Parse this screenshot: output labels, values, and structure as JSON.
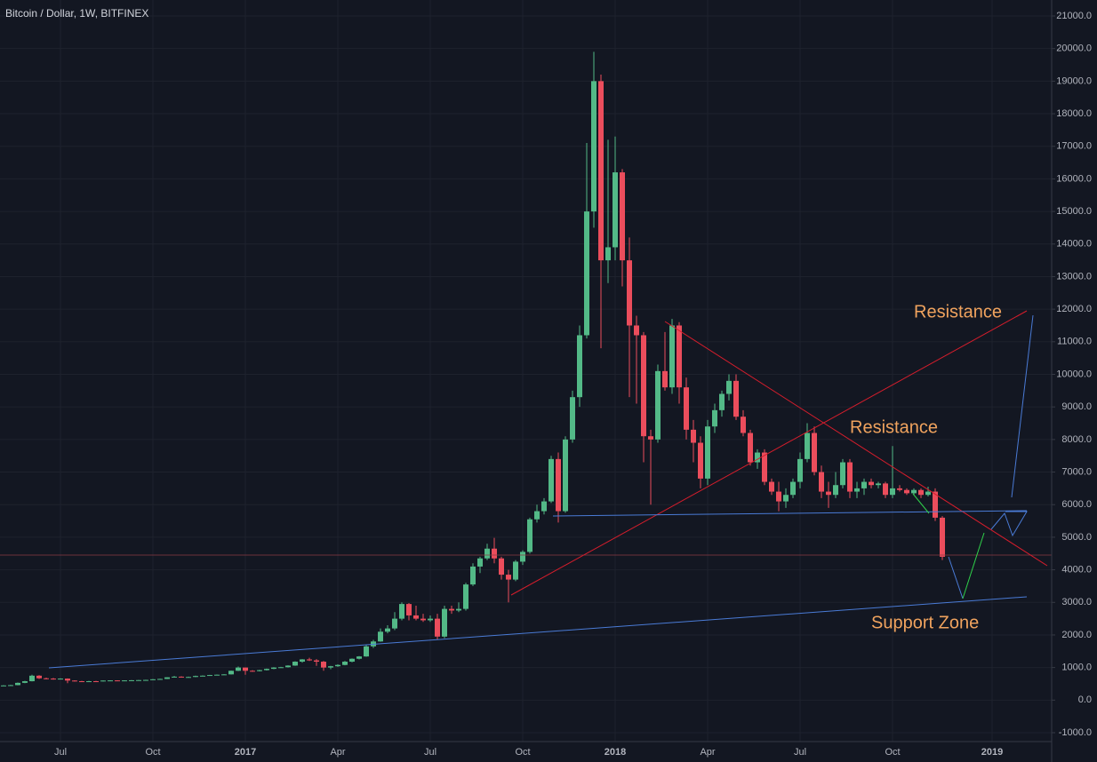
{
  "chart_data": {
    "type": "candlestick",
    "title": "Bitcoin / Dollar, 1W, BITFINEX",
    "categories": [
      null,
      null,
      null,
      null,
      null,
      null,
      null,
      null,
      "Jul",
      null,
      null,
      null,
      null,
      null,
      null,
      null,
      null,
      null,
      null,
      null,
      null,
      "Oct",
      null,
      null,
      null,
      null,
      null,
      null,
      null,
      null,
      null,
      null,
      null,
      null,
      "2017",
      null,
      null,
      null,
      null,
      null,
      null,
      null,
      null,
      null,
      null,
      null,
      null,
      "Apr",
      null,
      null,
      null,
      null,
      null,
      null,
      null,
      null,
      null,
      null,
      null,
      null,
      "Jul",
      null,
      null,
      null,
      null,
      null,
      null,
      null,
      null,
      null,
      null,
      null,
      null,
      "Oct",
      null,
      null,
      null,
      null,
      null,
      null,
      null,
      null,
      null,
      null,
      null,
      null,
      "2018",
      null,
      null,
      null,
      null,
      null,
      null,
      null,
      null,
      null,
      null,
      null,
      null,
      "Apr",
      null,
      null,
      null,
      null,
      null,
      null,
      null,
      null,
      null,
      null,
      null,
      null,
      "Jul",
      null,
      null,
      null,
      null,
      null,
      null,
      null,
      null,
      null,
      null,
      null,
      null,
      "Oct",
      null,
      null,
      null,
      null,
      null,
      null,
      null,
      null,
      null,
      null,
      null,
      null,
      null,
      "2019"
    ],
    "open": [
      440,
      450,
      460,
      530,
      580,
      750,
      670,
      660,
      650,
      660,
      600,
      580,
      575,
      580,
      575,
      600,
      605,
      600,
      605,
      610,
      615,
      620,
      640,
      650,
      700,
      720,
      705,
      710,
      740,
      750,
      770,
      780,
      790,
      900,
      1000,
      900,
      890,
      920,
      960,
      1000,
      1010,
      1060,
      1180,
      1250,
      1220,
      1180,
      1000,
      1040,
      1080,
      1180,
      1270,
      1340,
      1650,
      1800,
      2100,
      2200,
      2500,
      2950,
      2600,
      2500,
      2450,
      2500,
      1950,
      2800,
      2750,
      2800,
      3550,
      4100,
      4350,
      4650,
      4350,
      3850,
      3700,
      4250,
      4550,
      5550,
      5800,
      6100,
      7400,
      5800,
      8000,
      9300,
      11200,
      15000,
      19000,
      13500,
      13900,
      16200,
      13500,
      11500,
      11200,
      8100,
      8000,
      10100,
      9600,
      11500,
      9600,
      8300,
      7900,
      6800,
      8400,
      8900,
      9400,
      9800,
      8700,
      8200,
      7300,
      7600,
      6700,
      6400,
      6100,
      6300,
      6700,
      7400,
      8200,
      7000,
      6400,
      6300,
      6600,
      7300,
      6400,
      6500,
      6700,
      6600,
      6650,
      6300,
      6500,
      6450,
      6350,
      6450,
      6300,
      6400,
      5600,
      null,
      null,
      null,
      null,
      null,
      null,
      null
    ],
    "high": [
      460,
      470,
      540,
      590,
      780,
      765,
      690,
      680,
      670,
      665,
      610,
      590,
      590,
      590,
      605,
      610,
      610,
      610,
      615,
      620,
      625,
      645,
      655,
      705,
      740,
      730,
      720,
      750,
      760,
      775,
      785,
      795,
      910,
      1030,
      1000,
      920,
      930,
      970,
      1010,
      1020,
      1070,
      1190,
      1260,
      1300,
      1260,
      1200,
      1050,
      1100,
      1200,
      1280,
      1350,
      1700,
      1850,
      2200,
      2300,
      2700,
      3000,
      2980,
      2900,
      2650,
      2600,
      2650,
      2900,
      2900,
      3000,
      3600,
      4200,
      4400,
      4800,
      4980,
      4400,
      4000,
      4300,
      4600,
      5600,
      6000,
      6200,
      7500,
      7600,
      8100,
      9500,
      11500,
      17100,
      19900,
      19200,
      17200,
      17300,
      16300,
      14200,
      11800,
      11300,
      8300,
      10300,
      11300,
      11700,
      11600,
      9900,
      8600,
      8100,
      8600,
      9100,
      9500,
      10000,
      10000,
      8900,
      8300,
      7700,
      7700,
      6800,
      6700,
      6500,
      6800,
      7600,
      8500,
      8400,
      7200,
      6700,
      7000,
      7400,
      7400,
      6700,
      6800,
      6800,
      6700,
      6700,
      7800,
      6600,
      6500,
      6500,
      6500,
      6550,
      6500,
      5650,
      null,
      null,
      null,
      null,
      null,
      null,
      null
    ],
    "low": [
      430,
      445,
      455,
      520,
      575,
      650,
      640,
      630,
      640,
      520,
      570,
      565,
      570,
      570,
      570,
      595,
      595,
      598,
      600,
      605,
      608,
      615,
      635,
      645,
      690,
      690,
      700,
      705,
      730,
      745,
      760,
      775,
      785,
      890,
      780,
      870,
      880,
      910,
      950,
      990,
      1000,
      1050,
      1150,
      1200,
      1050,
      900,
      950,
      1020,
      1070,
      1160,
      1250,
      1330,
      1600,
      1790,
      2050,
      2150,
      2450,
      2450,
      2450,
      2400,
      2400,
      1850,
      1900,
      2650,
      2700,
      2750,
      3500,
      3900,
      4300,
      4200,
      3700,
      3000,
      3650,
      4150,
      4500,
      5450,
      5700,
      6050,
      5450,
      5750,
      7900,
      9000,
      11100,
      14500,
      10800,
      12800,
      13500,
      12700,
      9300,
      9100,
      7300,
      6000,
      7900,
      9500,
      9400,
      9100,
      8000,
      7300,
      6500,
      6600,
      8200,
      8700,
      9200,
      8600,
      8100,
      7200,
      7100,
      6600,
      6300,
      5800,
      5900,
      6200,
      6500,
      7300,
      6900,
      6200,
      5900,
      6200,
      6500,
      6200,
      6200,
      6300,
      6500,
      6500,
      6200,
      6200,
      6400,
      6300,
      6300,
      6200,
      6250,
      5500,
      4300,
      null,
      null,
      null,
      null,
      null,
      null,
      null
    ],
    "close": [
      450,
      460,
      530,
      580,
      750,
      670,
      660,
      650,
      660,
      600,
      580,
      575,
      580,
      575,
      600,
      605,
      600,
      605,
      610,
      615,
      620,
      640,
      650,
      700,
      720,
      705,
      710,
      740,
      750,
      770,
      780,
      790,
      900,
      1000,
      900,
      890,
      920,
      960,
      1000,
      1010,
      1060,
      1180,
      1250,
      1220,
      1180,
      1000,
      1040,
      1080,
      1180,
      1270,
      1340,
      1650,
      1800,
      2100,
      2200,
      2500,
      2950,
      2600,
      2500,
      2450,
      2500,
      1950,
      2800,
      2750,
      2800,
      3550,
      4100,
      4350,
      4650,
      4350,
      3850,
      3700,
      4250,
      4550,
      5550,
      5800,
      6100,
      7400,
      5800,
      8000,
      9300,
      11200,
      15000,
      19000,
      13500,
      13900,
      16200,
      13500,
      11500,
      11200,
      8100,
      8000,
      10100,
      9600,
      11500,
      9600,
      8300,
      7900,
      6800,
      8400,
      8900,
      9400,
      9800,
      8700,
      8200,
      7300,
      7600,
      6700,
      6400,
      6100,
      6300,
      6700,
      7400,
      8200,
      7000,
      6400,
      6300,
      6600,
      7300,
      6400,
      6500,
      6700,
      6600,
      6650,
      6300,
      6500,
      6450,
      6350,
      6450,
      6300,
      6400,
      5600,
      4400,
      null,
      null,
      null,
      null,
      null,
      null,
      null
    ],
    "up_color": "#53b987",
    "down_color": "#eb4d5c",
    "ylim": [
      -1000,
      21000
    ],
    "yticks": [
      {
        "value": -1000,
        "label": "-1000.0"
      },
      {
        "value": 0,
        "label": "0.0"
      },
      {
        "value": 1000,
        "label": "1000.0"
      },
      {
        "value": 2000,
        "label": "2000.0"
      },
      {
        "value": 3000,
        "label": "3000.0"
      },
      {
        "value": 4000,
        "label": "4000.0"
      },
      {
        "value": 5000,
        "label": "5000.0"
      },
      {
        "value": 6000,
        "label": "6000.0"
      },
      {
        "value": 7000,
        "label": "7000.0"
      },
      {
        "value": 8000,
        "label": "8000.0"
      },
      {
        "value": 9000,
        "label": "9000.0"
      },
      {
        "value": 10000,
        "label": "10000.0"
      },
      {
        "value": 11000,
        "label": "11000.0"
      },
      {
        "value": 12000,
        "label": "12000.0"
      },
      {
        "value": 13000,
        "label": "13000.0"
      },
      {
        "value": 14000,
        "label": "14000.0"
      },
      {
        "value": 15000,
        "label": "15000.0"
      },
      {
        "value": 16000,
        "label": "16000.0"
      },
      {
        "value": 17000,
        "label": "17000.0"
      },
      {
        "value": 18000,
        "label": "18000.0"
      },
      {
        "value": 19000,
        "label": "19000.0"
      },
      {
        "value": 20000,
        "label": "20000.0"
      },
      {
        "value": 21000,
        "label": "21000.0"
      }
    ],
    "grid": true,
    "annotations": [
      "Resistance",
      "Resistance",
      "Support Zone"
    ]
  }
}
